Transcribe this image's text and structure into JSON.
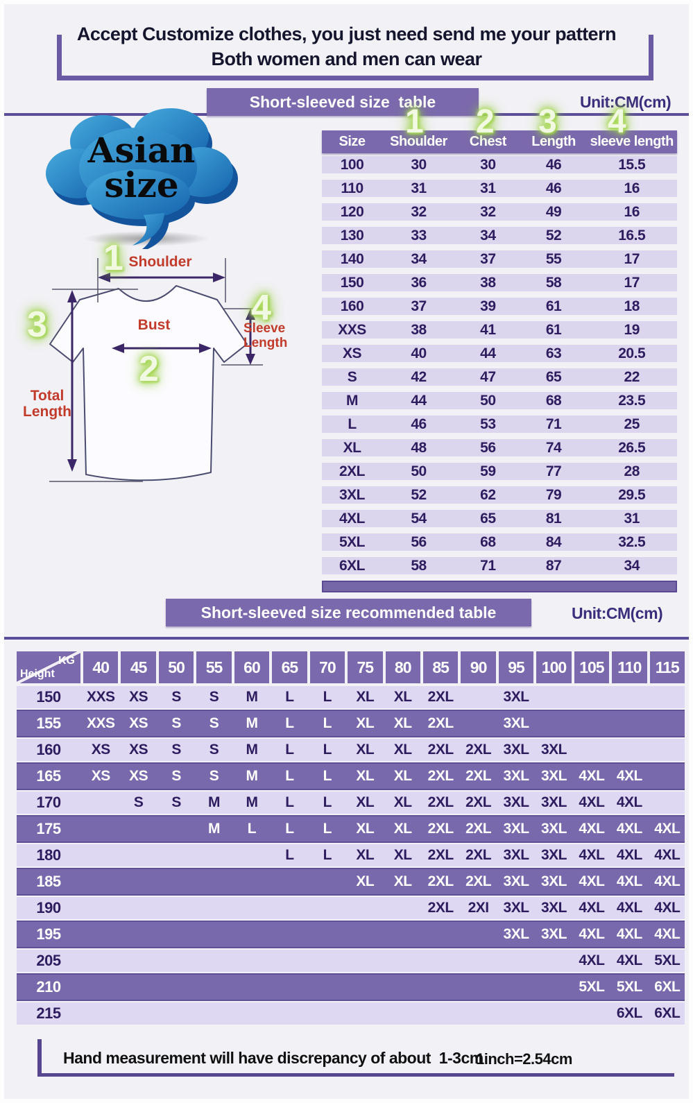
{
  "header": {
    "title_line1": "Accept Customize clothes, you just need send me your pattern",
    "title_line2": "Both women and men can wear"
  },
  "size_table": {
    "banner": "Short-sleeved size  table",
    "unit": "Unit:CM(cm)",
    "marker_numbers": [
      "1",
      "2",
      "3",
      "4"
    ],
    "columns": [
      "Size",
      "Shoulder",
      "Chest",
      "Length",
      "sleeve length"
    ],
    "rows": [
      [
        "100",
        "30",
        "30",
        "46",
        "15.5"
      ],
      [
        "110",
        "31",
        "31",
        "46",
        "16"
      ],
      [
        "120",
        "32",
        "32",
        "49",
        "16"
      ],
      [
        "130",
        "33",
        "34",
        "52",
        "16.5"
      ],
      [
        "140",
        "34",
        "37",
        "55",
        "17"
      ],
      [
        "150",
        "36",
        "38",
        "58",
        "17"
      ],
      [
        "160",
        "37",
        "39",
        "61",
        "18"
      ],
      [
        "XXS",
        "38",
        "41",
        "61",
        "19"
      ],
      [
        "XS",
        "40",
        "44",
        "63",
        "20.5"
      ],
      [
        "S",
        "42",
        "47",
        "65",
        "22"
      ],
      [
        "M",
        "44",
        "50",
        "68",
        "23.5"
      ],
      [
        "L",
        "46",
        "53",
        "71",
        "25"
      ],
      [
        "XL",
        "48",
        "56",
        "74",
        "26.5"
      ],
      [
        "2XL",
        "50",
        "59",
        "77",
        "28"
      ],
      [
        "3XL",
        "52",
        "62",
        "79",
        "29.5"
      ],
      [
        "4XL",
        "54",
        "65",
        "81",
        "31"
      ],
      [
        "5XL",
        "56",
        "68",
        "84",
        "32.5"
      ],
      [
        "6XL",
        "58",
        "71",
        "87",
        "34"
      ]
    ]
  },
  "cloud": {
    "line1": "Asian",
    "line2": "size"
  },
  "diagram": {
    "numbers": {
      "shoulder": "1",
      "bust": "2",
      "total_length": "3",
      "sleeve_length": "4"
    },
    "labels": {
      "shoulder": "Bust",
      "shoulder_label": "Shoulder",
      "bust_label": "Bust",
      "total_length_line1": "Total",
      "total_length_line2": "Length",
      "sleeve_length_line1": "Sleeve",
      "sleeve_length_line2": "Length"
    }
  },
  "recommend_table": {
    "banner": "Short-sleeved size recommended table",
    "unit": "Unit:CM(cm)",
    "corner": {
      "top": "KG",
      "bottom": "Height"
    },
    "weight_columns": [
      "40",
      "45",
      "50",
      "55",
      "60",
      "65",
      "70",
      "75",
      "80",
      "85",
      "90",
      "95",
      "100",
      "105",
      "110",
      "115"
    ],
    "rows": [
      {
        "height": "150",
        "cells": [
          "XXS",
          "XS",
          "S",
          "S",
          "M",
          "L",
          "L",
          "XL",
          "XL",
          "2XL",
          "",
          "3XL",
          "",
          "",
          "",
          ""
        ]
      },
      {
        "height": "155",
        "cells": [
          "XXS",
          "XS",
          "S",
          "S",
          "M",
          "L",
          "L",
          "XL",
          "XL",
          "2XL",
          "",
          "3XL",
          "",
          "",
          "",
          ""
        ]
      },
      {
        "height": "160",
        "cells": [
          "XS",
          "XS",
          "S",
          "S",
          "M",
          "L",
          "L",
          "XL",
          "XL",
          "2XL",
          "2XL",
          "3XL",
          "3XL",
          "",
          "",
          ""
        ]
      },
      {
        "height": "165",
        "cells": [
          "XS",
          "XS",
          "S",
          "S",
          "M",
          "L",
          "L",
          "XL",
          "XL",
          "2XL",
          "2XL",
          "3XL",
          "3XL",
          "4XL",
          "4XL",
          ""
        ]
      },
      {
        "height": "170",
        "cells": [
          "",
          "S",
          "S",
          "M",
          "M",
          "L",
          "L",
          "XL",
          "XL",
          "2XL",
          "2XL",
          "3XL",
          "3XL",
          "4XL",
          "4XL",
          ""
        ]
      },
      {
        "height": "175",
        "cells": [
          "",
          "",
          "",
          "M",
          "L",
          "L",
          "L",
          "XL",
          "XL",
          "2XL",
          "2XL",
          "3XL",
          "3XL",
          "4XL",
          "4XL",
          "4XL"
        ]
      },
      {
        "height": "180",
        "cells": [
          "",
          "",
          "",
          "",
          "",
          "L",
          "L",
          "XL",
          "XL",
          "2XL",
          "2XL",
          "3XL",
          "3XL",
          "4XL",
          "4XL",
          "4XL"
        ]
      },
      {
        "height": "185",
        "cells": [
          "",
          "",
          "",
          "",
          "",
          "",
          "",
          "XL",
          "XL",
          "2XL",
          "2XL",
          "3XL",
          "3XL",
          "4XL",
          "4XL",
          "4XL"
        ]
      },
      {
        "height": "190",
        "cells": [
          "",
          "",
          "",
          "",
          "",
          "",
          "",
          "",
          "",
          "2XL",
          "2XI",
          "3XL",
          "3XL",
          "4XL",
          "4XL",
          "4XL"
        ]
      },
      {
        "height": "195",
        "cells": [
          "",
          "",
          "",
          "",
          "",
          "",
          "",
          "",
          "",
          "",
          "",
          "3XL",
          "3XL",
          "4XL",
          "4XL",
          "4XL"
        ]
      },
      {
        "height": "205",
        "cells": [
          "",
          "",
          "",
          "",
          "",
          "",
          "",
          "",
          "",
          "",
          "",
          "",
          "",
          "4XL",
          "4XL",
          "5XL"
        ]
      },
      {
        "height": "210",
        "cells": [
          "",
          "",
          "",
          "",
          "",
          "",
          "",
          "",
          "",
          "",
          "",
          "",
          "",
          "5XL",
          "5XL",
          "6XL"
        ]
      },
      {
        "height": "215",
        "cells": [
          "",
          "",
          "",
          "",
          "",
          "",
          "",
          "",
          "",
          "",
          "",
          "",
          "",
          "",
          "6XL",
          "6XL"
        ]
      }
    ]
  },
  "footer": {
    "note": "Hand measurement will have discrepancy of about  1-3cm",
    "conversion": "1inch=2.54cm"
  },
  "colors": {
    "purple_banner": "#7b69ad",
    "purple_row": "#7869ac",
    "light_row": "#dcd5ee",
    "divider": "#5d4e99",
    "dark_text": "#2d1d5e",
    "unit_text": "#3b2f7d",
    "red_label": "#c23b2a",
    "glow_green": "#9bd23f",
    "cloud_blue": "#2f95cd",
    "background": "#f2f1f6"
  }
}
